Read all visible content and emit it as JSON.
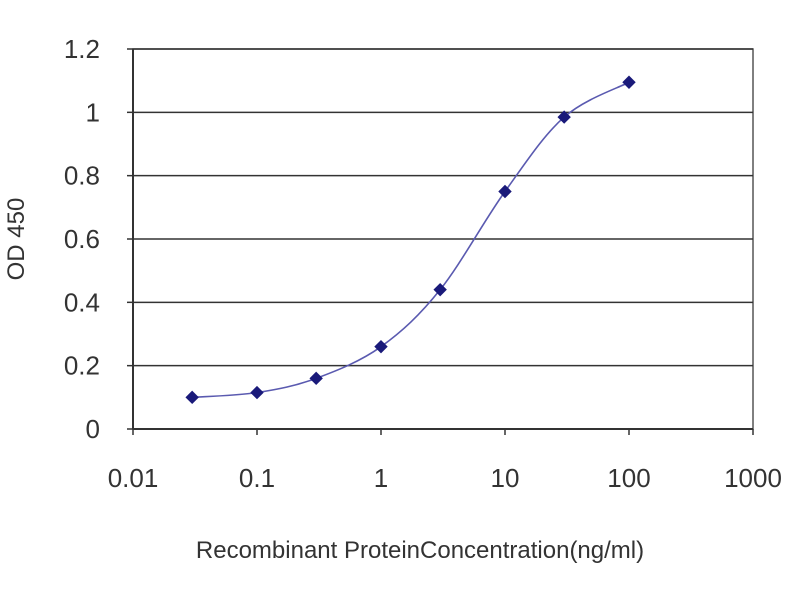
{
  "chart_data": {
    "type": "line",
    "title": "",
    "xlabel": "Recombinant ProteinConcentration(ng/ml)",
    "ylabel": "OD 450",
    "x_scale": "log",
    "xlim": [
      0.01,
      1000
    ],
    "ylim": [
      0,
      1.2
    ],
    "x_ticks": [
      "0.01",
      "0.1",
      "1",
      "10",
      "100",
      "1000"
    ],
    "y_ticks": [
      "0",
      "0.2",
      "0.4",
      "0.6",
      "0.8",
      "1",
      "1.2"
    ],
    "grid": "horizontal",
    "legend": "none",
    "series": [
      {
        "x": [
          0.03,
          0.1,
          0.3,
          1,
          3,
          10,
          30,
          100
        ],
        "values": [
          0.1,
          0.115,
          0.16,
          0.26,
          0.44,
          0.75,
          0.985,
          1.095
        ],
        "color": "#1a1a7a",
        "marker": "diamond"
      }
    ]
  }
}
